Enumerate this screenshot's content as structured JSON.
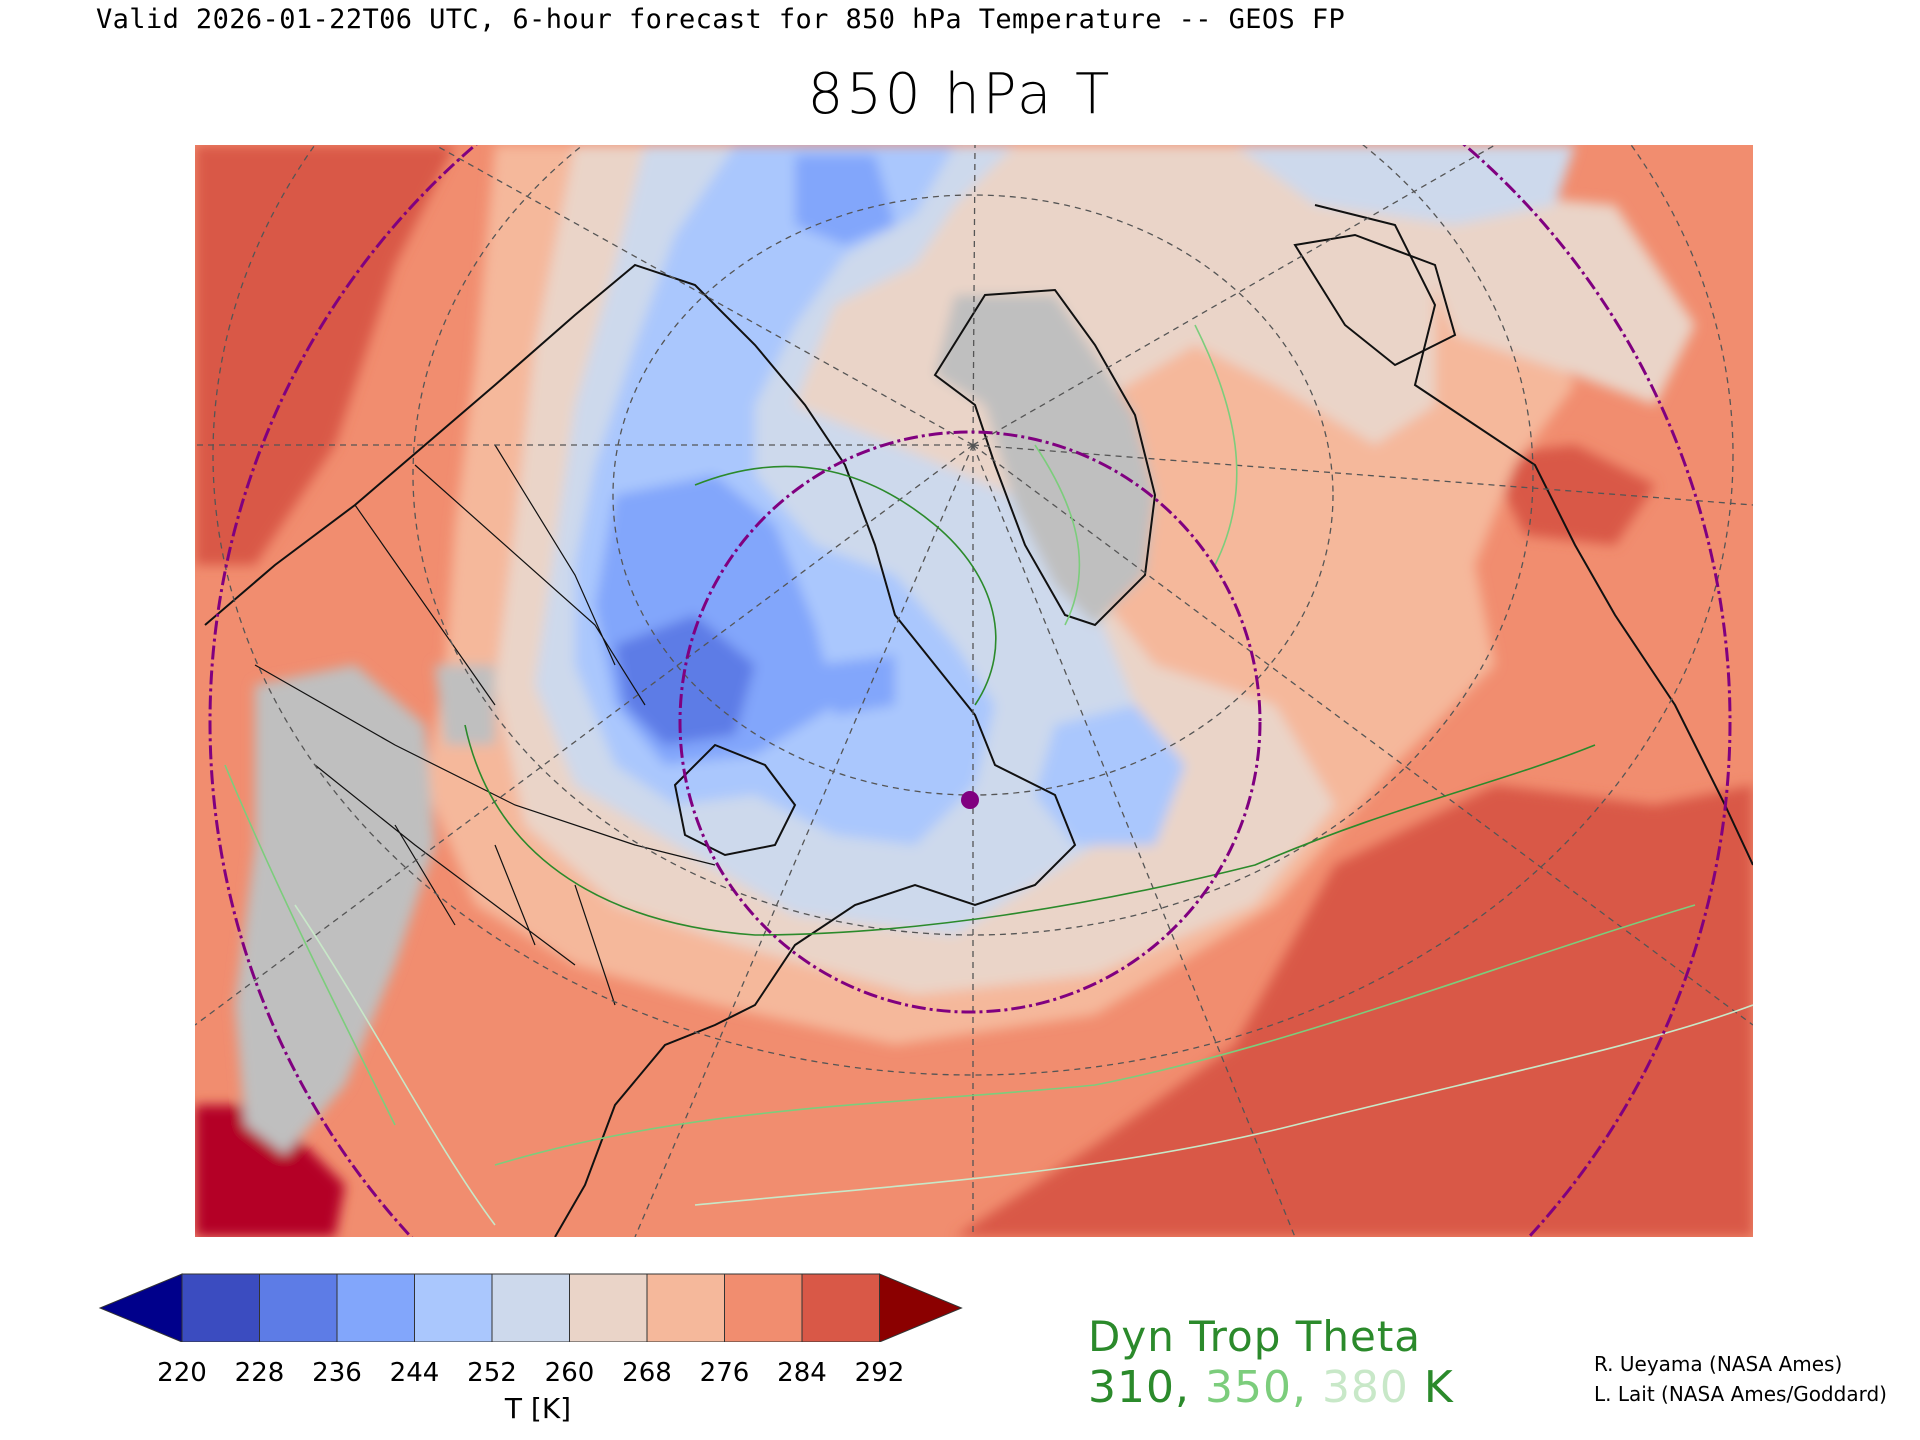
{
  "header": {
    "caption": "Valid 2026-01-22T06 UTC, 6-hour forecast for 850 hPa Temperature -- GEOS FP",
    "title": "850 hPa T"
  },
  "map": {
    "projection": "north polar stereographic",
    "field": "850 hPa Temperature",
    "region": "North America, North Atlantic, Greenland, Europe",
    "marker_color": "#800080",
    "circle_color": "#800080",
    "contour_color": "#3a9a3a"
  },
  "colorbar": {
    "levels": [
      "220",
      "228",
      "236",
      "244",
      "252",
      "260",
      "268",
      "276",
      "284",
      "292"
    ],
    "low_color": "#00008b",
    "high_color": "#8b0000",
    "colors": [
      "#3b4cc0",
      "#5d7ce6",
      "#82a6fb",
      "#aac7fd",
      "#cdd9ec",
      "#ead4c8",
      "#f5b89b",
      "#f18d6f",
      "#d95847"
    ],
    "units": "T [K]"
  },
  "tropopause": {
    "title": "Dyn Trop Theta",
    "values": [
      {
        "text": "310",
        "color": "#2b8a2b"
      },
      {
        "text": ", ",
        "color": "#2b8a2b"
      },
      {
        "text": "350",
        "color": "#7ccd7c"
      },
      {
        "text": ", ",
        "color": "#7ccd7c"
      },
      {
        "text": "380",
        "color": "#c8e8c8"
      },
      {
        "text": " K",
        "color": "#2b8a2b"
      }
    ]
  },
  "credits": [
    "R. Ueyama (NASA Ames)",
    "L. Lait (NASA Ames/Goddard)"
  ]
}
